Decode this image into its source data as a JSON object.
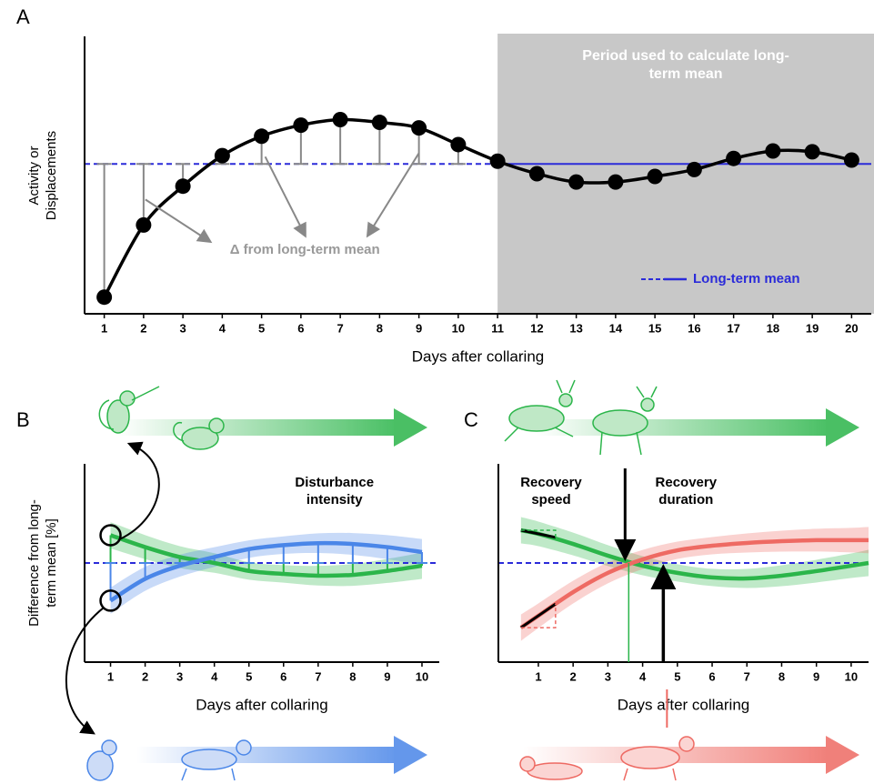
{
  "chart_data": [
    {
      "panel": "A",
      "type": "line",
      "ylabel": "Activity or Displacements",
      "xlabel": "Days after collaring",
      "x": [
        1,
        2,
        3,
        4,
        5,
        6,
        7,
        8,
        9,
        10,
        11,
        12,
        13,
        14,
        15,
        16,
        17,
        18,
        19,
        20
      ],
      "values": [
        6,
        32,
        46,
        57,
        64,
        68,
        70,
        69,
        67,
        61,
        55,
        50.5,
        47.5,
        47.5,
        49.5,
        52,
        56,
        58.7,
        58.4,
        55.4
      ],
      "color": "#000000",
      "mean": 54,
      "mean_label": "Long-term mean",
      "mean_color": "#2b2bd9",
      "shade_x": 11,
      "shade_label": "Period used to calculate long-term mean",
      "shade_color": "#c8c8c8",
      "delta_label": "Δ from long-term mean",
      "xlim": [
        0.5,
        20.5
      ],
      "ylim": [
        0,
        100
      ],
      "xticks": [
        1,
        2,
        3,
        4,
        5,
        6,
        7,
        8,
        9,
        10,
        11,
        12,
        13,
        14,
        15,
        16,
        17,
        18,
        19,
        20
      ]
    },
    {
      "panel": "B",
      "type": "line",
      "ylabel": "Difference from long-term mean [%]",
      "xlabel": "Days after collaring",
      "annotation": "Disturbance intensity",
      "x": [
        1,
        2,
        3,
        4,
        5,
        6,
        7,
        8,
        9,
        10
      ],
      "series": [
        {
          "color": "#2bb54a",
          "values": [
            14,
            8,
            3,
            0,
            -4,
            -5.5,
            -6.4,
            -6,
            -4,
            -1.4
          ]
        },
        {
          "color": "#4a86e8",
          "values": [
            -19,
            -8,
            -1.4,
            3,
            7,
            9,
            10,
            9.6,
            8,
            5.5
          ]
        }
      ],
      "mean": 0,
      "mean_color": "#2b2bd9",
      "xlim": [
        0.25,
        10.5
      ],
      "ylim": [
        -50,
        50
      ],
      "xticks": [
        1,
        2,
        3,
        4,
        5,
        6,
        7,
        8,
        9,
        10
      ]
    },
    {
      "panel": "C",
      "type": "line",
      "xlabel": "Days after collaring",
      "annotations": [
        "Recovery speed",
        "Recovery duration"
      ],
      "x": [
        0.5,
        1,
        2,
        3,
        4,
        5,
        6,
        7,
        8,
        9,
        10,
        10.5
      ],
      "series": [
        {
          "color": "#2bb54a",
          "values": [
            16.5,
            14.7,
            9.6,
            3.7,
            -1.4,
            -5,
            -7.3,
            -7.8,
            -6.4,
            -4.1,
            -1.4,
            0
          ]
        },
        {
          "color": "#ee6a63",
          "values": [
            -32.6,
            -26.6,
            -14.7,
            -5,
            1.8,
            6.4,
            8.7,
            10.1,
            11,
            11.5,
            11.5,
            11.5
          ]
        }
      ],
      "markers": [
        3.6,
        4.7
      ],
      "mean": 0,
      "mean_color": "#2b2bd9",
      "xlim": [
        -0.15,
        10.5
      ],
      "ylim": [
        -50,
        50
      ],
      "xticks": [
        1,
        2,
        3,
        4,
        5,
        6,
        7,
        8,
        9,
        10
      ]
    }
  ]
}
